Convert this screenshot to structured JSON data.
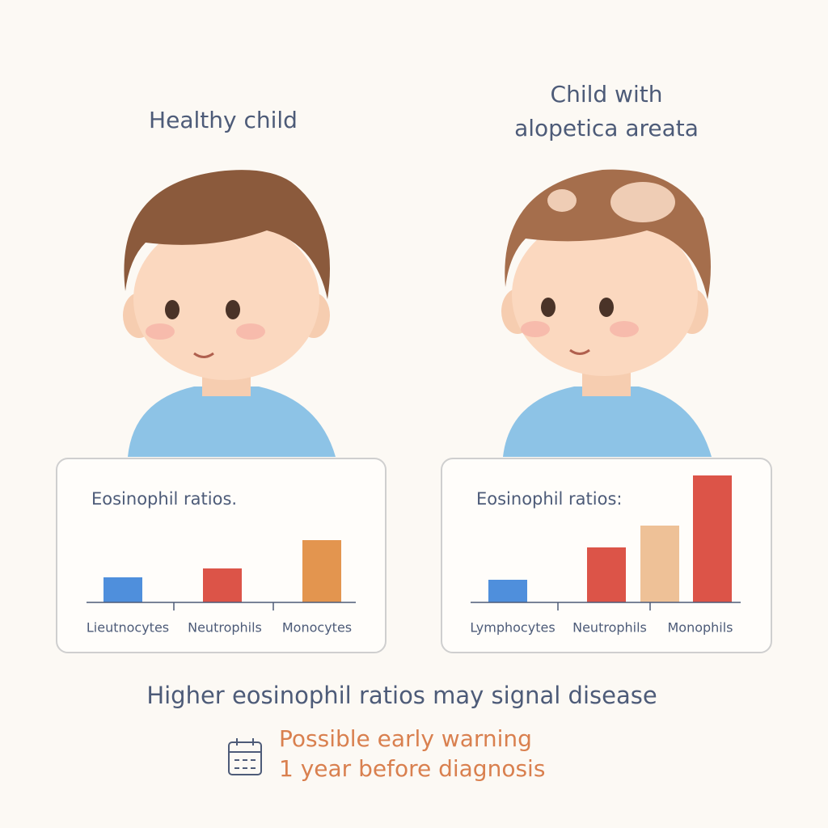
{
  "figures": [
    {
      "caption": "Healthy child"
    },
    {
      "caption_lines": [
        "Child with",
        "alopetica areata"
      ]
    }
  ],
  "chart_data": [
    {
      "type": "bar",
      "title": "Eosinophil ratios.",
      "categories": [
        "Lieutnocytes",
        "Neutrophils",
        "Monocytes"
      ],
      "values": [
        31,
        42,
        77
      ],
      "colors": [
        "#4f8fdc",
        "#dc5448",
        "#e3954f"
      ]
    },
    {
      "type": "bar",
      "title": "Eosinophil ratios:",
      "categories": [
        "Lymphocytes",
        "Neutrophils",
        null,
        "Monophils"
      ],
      "values": [
        28,
        68,
        95,
        157
      ],
      "colors": [
        "#4f8fdc",
        "#dc5448",
        "#eec197",
        "#dc5448"
      ]
    }
  ],
  "footer": {
    "statement": "Higher eosinophil ratios may signal disease",
    "warning_lines": [
      "Possible early warning",
      "1 year before diagnosis"
    ]
  }
}
